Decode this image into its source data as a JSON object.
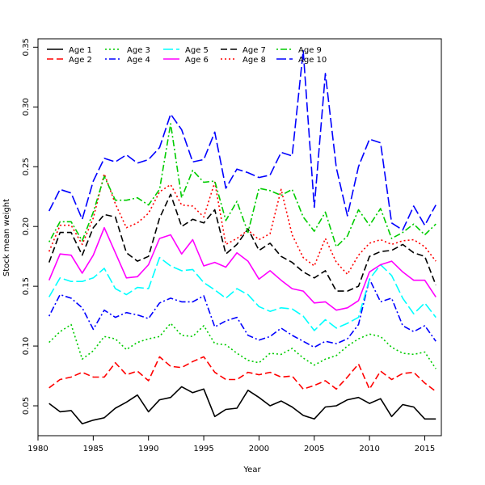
{
  "chart_data": {
    "type": "line",
    "title": "",
    "xlabel": "Year",
    "ylabel": "Stock mean weight",
    "xlim": [
      1980,
      2016.5
    ],
    "ylim": [
      0.025,
      0.357
    ],
    "x_ticks": [
      1980,
      1985,
      1990,
      1995,
      2000,
      2005,
      2010,
      2015
    ],
    "y_ticks": [
      0.05,
      0.1,
      0.15,
      0.2,
      0.25,
      0.3,
      0.35
    ],
    "y_tick_labels": [
      "0.05",
      "0.10",
      "0.15",
      "0.20",
      "0.25",
      "0.30",
      "0.35"
    ],
    "x": [
      1981,
      1982,
      1983,
      1984,
      1985,
      1986,
      1987,
      1988,
      1989,
      1990,
      1991,
      1992,
      1993,
      1994,
      1995,
      1996,
      1997,
      1998,
      1999,
      2000,
      2001,
      2002,
      2003,
      2004,
      2005,
      2006,
      2007,
      2008,
      2009,
      2010,
      2011,
      2012,
      2013,
      2014,
      2015,
      2016
    ],
    "series": [
      {
        "name": "Age 1",
        "color": "#000000",
        "dash": "solid",
        "values": [
          0.052,
          0.045,
          0.046,
          0.035,
          0.038,
          0.04,
          0.048,
          0.053,
          0.059,
          0.045,
          0.055,
          0.057,
          0.066,
          0.061,
          0.064,
          0.041,
          0.047,
          0.048,
          0.063,
          0.057,
          0.05,
          0.054,
          0.049,
          0.042,
          0.039,
          0.049,
          0.05,
          0.055,
          0.057,
          0.052,
          0.056,
          0.041,
          0.051,
          0.049,
          0.039,
          0.039
        ]
      },
      {
        "name": "Age 2",
        "color": "#ff0000",
        "dash": "dashed",
        "values": [
          0.065,
          0.072,
          0.074,
          0.078,
          0.074,
          0.074,
          0.086,
          0.076,
          0.079,
          0.071,
          0.091,
          0.083,
          0.082,
          0.087,
          0.091,
          0.078,
          0.072,
          0.072,
          0.078,
          0.076,
          0.078,
          0.074,
          0.075,
          0.064,
          0.067,
          0.071,
          0.064,
          0.074,
          0.085,
          0.064,
          0.079,
          0.072,
          0.077,
          0.078,
          0.069,
          0.062
        ]
      },
      {
        "name": "Age 3",
        "color": "#00cc00",
        "dash": "dotted",
        "values": [
          0.103,
          0.112,
          0.118,
          0.089,
          0.096,
          0.108,
          0.106,
          0.097,
          0.103,
          0.106,
          0.108,
          0.119,
          0.109,
          0.108,
          0.117,
          0.102,
          0.101,
          0.094,
          0.088,
          0.086,
          0.094,
          0.093,
          0.098,
          0.09,
          0.084,
          0.089,
          0.092,
          0.1,
          0.106,
          0.11,
          0.108,
          0.099,
          0.094,
          0.093,
          0.095,
          0.081
        ]
      },
      {
        "name": "Age 4",
        "color": "#0000ff",
        "dash": "dotdash",
        "values": [
          0.125,
          0.143,
          0.14,
          0.132,
          0.114,
          0.13,
          0.124,
          0.128,
          0.126,
          0.123,
          0.136,
          0.14,
          0.137,
          0.137,
          0.142,
          0.116,
          0.121,
          0.124,
          0.109,
          0.105,
          0.108,
          0.115,
          0.109,
          0.104,
          0.099,
          0.104,
          0.102,
          0.106,
          0.118,
          0.156,
          0.137,
          0.14,
          0.117,
          0.112,
          0.117,
          0.104
        ]
      },
      {
        "name": "Age 5",
        "color": "#00ffff",
        "dash": "longdash",
        "values": [
          0.141,
          0.157,
          0.154,
          0.154,
          0.157,
          0.165,
          0.148,
          0.143,
          0.149,
          0.148,
          0.174,
          0.167,
          0.163,
          0.164,
          0.153,
          0.147,
          0.14,
          0.148,
          0.143,
          0.133,
          0.129,
          0.132,
          0.131,
          0.125,
          0.113,
          0.122,
          0.115,
          0.119,
          0.124,
          0.156,
          0.168,
          0.159,
          0.14,
          0.127,
          0.136,
          0.124
        ]
      },
      {
        "name": "Age 6",
        "color": "#ff00ff",
        "dash": "solid",
        "values": [
          0.155,
          0.177,
          0.176,
          0.161,
          0.176,
          0.199,
          0.178,
          0.157,
          0.158,
          0.168,
          0.19,
          0.193,
          0.177,
          0.189,
          0.167,
          0.17,
          0.166,
          0.178,
          0.171,
          0.156,
          0.163,
          0.155,
          0.148,
          0.146,
          0.136,
          0.137,
          0.13,
          0.132,
          0.138,
          0.162,
          0.168,
          0.171,
          0.162,
          0.155,
          0.155,
          0.141
        ]
      },
      {
        "name": "Age 7",
        "color": "#000000",
        "dash": "dashed",
        "values": [
          0.17,
          0.195,
          0.195,
          0.176,
          0.199,
          0.21,
          0.208,
          0.178,
          0.171,
          0.175,
          0.207,
          0.227,
          0.2,
          0.206,
          0.203,
          0.214,
          0.177,
          0.185,
          0.198,
          0.18,
          0.186,
          0.175,
          0.17,
          0.162,
          0.157,
          0.163,
          0.146,
          0.146,
          0.15,
          0.175,
          0.179,
          0.18,
          0.185,
          0.178,
          0.175,
          0.151
        ]
      },
      {
        "name": "Age 8",
        "color": "#ff0000",
        "dash": "dotted",
        "values": [
          0.179,
          0.201,
          0.201,
          0.185,
          0.207,
          0.244,
          0.219,
          0.199,
          0.203,
          0.211,
          0.229,
          0.235,
          0.218,
          0.217,
          0.208,
          0.237,
          0.185,
          0.19,
          0.197,
          0.189,
          0.194,
          0.231,
          0.193,
          0.174,
          0.167,
          0.19,
          0.17,
          0.16,
          0.176,
          0.186,
          0.189,
          0.185,
          0.188,
          0.189,
          0.183,
          0.171
        ]
      },
      {
        "name": "Age 9",
        "color": "#00cc00",
        "dash": "dotdash",
        "values": [
          0.187,
          0.204,
          0.204,
          0.188,
          0.212,
          0.242,
          0.222,
          0.222,
          0.224,
          0.218,
          0.231,
          0.286,
          0.224,
          0.247,
          0.237,
          0.238,
          0.205,
          0.221,
          0.195,
          0.232,
          0.23,
          0.226,
          0.231,
          0.208,
          0.196,
          0.212,
          0.183,
          0.192,
          0.214,
          0.201,
          0.215,
          0.19,
          0.195,
          0.202,
          0.193,
          0.202
        ]
      },
      {
        "name": "Age 10",
        "color": "#0000ff",
        "dash": "longdash",
        "values": [
          0.213,
          0.231,
          0.228,
          0.206,
          0.238,
          0.257,
          0.254,
          0.26,
          0.253,
          0.256,
          0.266,
          0.294,
          0.281,
          0.254,
          0.256,
          0.279,
          0.232,
          0.248,
          0.245,
          0.241,
          0.243,
          0.262,
          0.259,
          0.347,
          0.216,
          0.328,
          0.249,
          0.209,
          0.25,
          0.273,
          0.27,
          0.203,
          0.197,
          0.217,
          0.201,
          0.218
        ]
      }
    ],
    "legend": {
      "placement": "top-left",
      "row1": [
        "Age 1",
        "Age 3",
        "Age 5",
        "Age 7",
        "Age 9"
      ],
      "row2": [
        "Age 2",
        "Age 4",
        "Age 6",
        "Age 8",
        "Age 10"
      ]
    }
  }
}
